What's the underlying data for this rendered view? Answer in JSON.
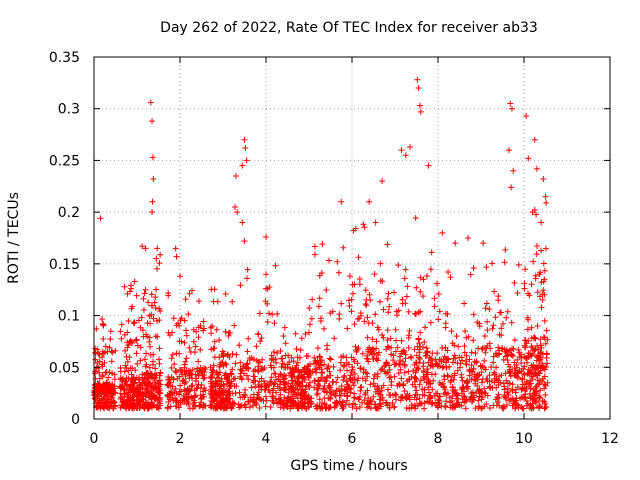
{
  "chart_data": {
    "type": "scatter",
    "title": "Day 262 of 2022, Rate Of TEC Index for receiver ab33",
    "xlabel": "GPS time / hours",
    "ylabel": "ROTI / TECUs",
    "xlim": [
      0,
      12
    ],
    "ylim": [
      0,
      0.35
    ],
    "x_ticks": [
      0,
      2,
      4,
      6,
      8,
      10,
      12
    ],
    "x_tick_labels": [
      "0",
      "2",
      "4",
      "6",
      "8",
      "10",
      "12"
    ],
    "y_ticks": [
      0,
      0.05,
      0.1,
      0.15,
      0.2,
      0.25,
      0.3,
      0.35
    ],
    "y_tick_labels": [
      "0",
      "0.05",
      "0.1",
      "0.15",
      "0.2",
      "0.25",
      "0.3",
      "0.35"
    ],
    "grid": true,
    "marker": "plus",
    "series": [
      {
        "name": "ROTI",
        "color": "#ff0000",
        "x_range": [
          0,
          10.55
        ],
        "n_points": 2600,
        "notable_points": [
          [
            0.15,
            0.194
          ],
          [
            1.32,
            0.306
          ],
          [
            1.35,
            0.288
          ],
          [
            1.37,
            0.253
          ],
          [
            1.38,
            0.232
          ],
          [
            1.36,
            0.21
          ],
          [
            1.35,
            0.2
          ],
          [
            1.2,
            0.165
          ],
          [
            1.47,
            0.165
          ],
          [
            1.45,
            0.155
          ],
          [
            1.9,
            0.165
          ],
          [
            1.92,
            0.157
          ],
          [
            3.5,
            0.27
          ],
          [
            3.52,
            0.262
          ],
          [
            3.45,
            0.245
          ],
          [
            3.55,
            0.25
          ],
          [
            3.3,
            0.235
          ],
          [
            3.28,
            0.205
          ],
          [
            3.33,
            0.2
          ],
          [
            3.45,
            0.19
          ],
          [
            3.5,
            0.172
          ],
          [
            4.0,
            0.176
          ],
          [
            4.0,
            0.14
          ],
          [
            5.75,
            0.21
          ],
          [
            6.4,
            0.21
          ],
          [
            6.55,
            0.19
          ],
          [
            6.7,
            0.23
          ],
          [
            7.15,
            0.26
          ],
          [
            7.25,
            0.255
          ],
          [
            7.35,
            0.263
          ],
          [
            7.52,
            0.328
          ],
          [
            7.55,
            0.32
          ],
          [
            7.58,
            0.303
          ],
          [
            7.6,
            0.297
          ],
          [
            7.78,
            0.245
          ],
          [
            8.1,
            0.18
          ],
          [
            8.4,
            0.17
          ],
          [
            8.7,
            0.175
          ],
          [
            9.05,
            0.17
          ],
          [
            9.68,
            0.305
          ],
          [
            9.72,
            0.3
          ],
          [
            9.65,
            0.26
          ],
          [
            9.75,
            0.24
          ],
          [
            9.7,
            0.224
          ],
          [
            10.05,
            0.293
          ],
          [
            10.1,
            0.252
          ],
          [
            10.25,
            0.27
          ],
          [
            10.3,
            0.242
          ],
          [
            10.45,
            0.232
          ],
          [
            10.5,
            0.215
          ],
          [
            10.2,
            0.2
          ],
          [
            10.4,
            0.19
          ]
        ],
        "clusters": [
          {
            "x": [
              0.0,
              0.5
            ],
            "y_base": [
              0.01,
              0.035
            ],
            "y_peak": 0.1
          },
          {
            "x": [
              0.6,
              1.1
            ],
            "y_base": [
              0.01,
              0.04
            ],
            "y_peak": 0.14
          },
          {
            "x": [
              1.1,
              1.55
            ],
            "y_base": [
              0.01,
              0.045
            ],
            "y_peak": 0.17
          },
          {
            "x": [
              1.7,
              2.6
            ],
            "y_base": [
              0.01,
              0.05
            ],
            "y_peak": 0.14
          },
          {
            "x": [
              2.7,
              3.2
            ],
            "y_base": [
              0.01,
              0.045
            ],
            "y_peak": 0.13
          },
          {
            "x": [
              3.2,
              4.4
            ],
            "y_base": [
              0.01,
              0.06
            ],
            "y_peak": 0.15
          },
          {
            "x": [
              4.4,
              5.0
            ],
            "y_base": [
              0.01,
              0.05
            ],
            "y_peak": 0.09
          },
          {
            "x": [
              5.0,
              6.0
            ],
            "y_base": [
              0.01,
              0.06
            ],
            "y_peak": 0.17
          },
          {
            "x": [
              6.0,
              7.0
            ],
            "y_base": [
              0.01,
              0.07
            ],
            "y_peak": 0.2
          },
          {
            "x": [
              7.0,
              8.0
            ],
            "y_base": [
              0.01,
              0.07
            ],
            "y_peak": 0.23
          },
          {
            "x": [
              8.0,
              9.0
            ],
            "y_base": [
              0.01,
              0.06
            ],
            "y_peak": 0.15
          },
          {
            "x": [
              9.0,
              10.0
            ],
            "y_base": [
              0.01,
              0.07
            ],
            "y_peak": 0.17
          },
          {
            "x": [
              10.0,
              10.55
            ],
            "y_base": [
              0.01,
              0.08
            ],
            "y_peak": 0.22
          }
        ]
      }
    ]
  }
}
